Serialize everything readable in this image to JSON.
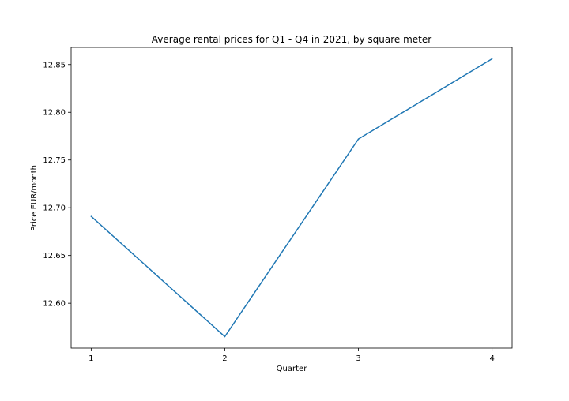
{
  "chart_data": {
    "type": "line",
    "title": "Average rental prices for Q1 - Q4 in 2021, by square meter",
    "xlabel": "Quarter",
    "ylabel": "Price EUR/month",
    "x": [
      1,
      2,
      3,
      4
    ],
    "series": [
      {
        "values": [
          12.691,
          12.565,
          12.772,
          12.856
        ],
        "color": "#1f77b4"
      }
    ],
    "xlim": [
      0.85,
      4.15
    ],
    "ylim": [
      12.553,
      12.868
    ],
    "xticks": [
      1,
      2,
      3,
      4
    ],
    "xtick_labels": [
      "1",
      "2",
      "3",
      "4"
    ],
    "yticks": [
      12.6,
      12.65,
      12.7,
      12.75,
      12.8,
      12.85
    ],
    "ytick_labels": [
      "12.60",
      "12.65",
      "12.70",
      "12.75",
      "12.80",
      "12.85"
    ],
    "grid": false,
    "legend": "none"
  }
}
